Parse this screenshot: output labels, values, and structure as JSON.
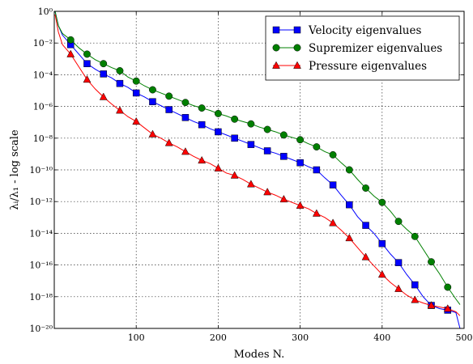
{
  "chart_data": {
    "type": "line",
    "xlabel": "Modes N.",
    "ylabel": "λᵢ/λ₁ - log scale",
    "xlim": [
      0,
      500
    ],
    "ylim_log10": [
      -20,
      0
    ],
    "yscale": "log",
    "grid": true,
    "legend_position": "top-right",
    "x_ticks": [
      100,
      200,
      300,
      400,
      500
    ],
    "x_tick_labels": [
      "100",
      "200",
      "300",
      "400",
      "500"
    ],
    "y_ticks_log10": [
      0,
      -2,
      -4,
      -6,
      -8,
      -10,
      -12,
      -14,
      -16,
      -18,
      -20
    ],
    "y_tick_labels": [
      "10⁰",
      "10⁻²",
      "10⁻⁴",
      "10⁻⁶",
      "10⁻⁸",
      "10⁻¹⁰",
      "10⁻¹²",
      "10⁻¹⁴",
      "10⁻¹⁶",
      "10⁻¹⁸",
      "10⁻²⁰"
    ],
    "series": [
      {
        "name": "Velocity eigenvalues",
        "color": "#0000ff",
        "marker": "square",
        "marker_every": 20,
        "x": [
          1,
          5,
          10,
          20,
          30,
          40,
          50,
          60,
          70,
          80,
          90,
          100,
          110,
          120,
          130,
          140,
          150,
          160,
          170,
          180,
          190,
          200,
          210,
          220,
          230,
          240,
          250,
          260,
          270,
          280,
          290,
          300,
          310,
          320,
          330,
          340,
          350,
          360,
          370,
          380,
          390,
          400,
          410,
          420,
          430,
          440,
          450,
          460,
          470,
          480,
          490,
          495
        ],
        "log10_y": [
          0,
          -0.9,
          -1.5,
          -2.1,
          -2.7,
          -3.3,
          -3.65,
          -3.95,
          -4.2,
          -4.55,
          -4.8,
          -5.15,
          -5.4,
          -5.7,
          -5.95,
          -6.2,
          -6.45,
          -6.7,
          -6.95,
          -7.15,
          -7.4,
          -7.6,
          -7.8,
          -8.0,
          -8.2,
          -8.4,
          -8.6,
          -8.8,
          -8.95,
          -9.15,
          -9.35,
          -9.55,
          -9.8,
          -10.0,
          -10.5,
          -10.95,
          -11.6,
          -12.2,
          -12.95,
          -13.5,
          -14.0,
          -14.65,
          -15.3,
          -15.85,
          -16.6,
          -17.25,
          -18.0,
          -18.55,
          -18.75,
          -18.85,
          -19.0,
          -20.0
        ]
      },
      {
        "name": "Supremizer eigenvalues",
        "color": "#008000",
        "marker": "circle",
        "marker_every": 20,
        "x": [
          1,
          5,
          10,
          20,
          30,
          40,
          50,
          60,
          70,
          80,
          90,
          100,
          110,
          120,
          130,
          140,
          150,
          160,
          170,
          180,
          190,
          200,
          210,
          220,
          230,
          240,
          250,
          260,
          270,
          280,
          290,
          300,
          310,
          320,
          330,
          340,
          350,
          360,
          370,
          380,
          390,
          400,
          410,
          420,
          430,
          440,
          450,
          460,
          470,
          480,
          490,
          495
        ],
        "log10_y": [
          0,
          -0.9,
          -1.4,
          -1.8,
          -2.3,
          -2.7,
          -3.05,
          -3.3,
          -3.55,
          -3.75,
          -4.15,
          -4.4,
          -4.7,
          -4.95,
          -5.15,
          -5.35,
          -5.55,
          -5.75,
          -5.95,
          -6.1,
          -6.25,
          -6.45,
          -6.6,
          -6.8,
          -6.95,
          -7.1,
          -7.3,
          -7.45,
          -7.6,
          -7.8,
          -7.95,
          -8.1,
          -8.35,
          -8.55,
          -8.85,
          -9.05,
          -9.55,
          -10.0,
          -10.6,
          -11.15,
          -11.65,
          -12.05,
          -12.6,
          -13.25,
          -13.75,
          -14.2,
          -15.0,
          -15.8,
          -16.55,
          -17.4,
          -18.15,
          -18.5
        ]
      },
      {
        "name": "Pressure eigenvalues",
        "color": "#ff0000",
        "marker": "triangle",
        "marker_every": 20,
        "x": [
          1,
          5,
          10,
          20,
          30,
          40,
          50,
          60,
          70,
          80,
          90,
          100,
          110,
          120,
          130,
          140,
          150,
          160,
          170,
          180,
          190,
          200,
          210,
          220,
          230,
          240,
          250,
          260,
          270,
          280,
          290,
          300,
          310,
          320,
          330,
          340,
          350,
          360,
          370,
          380,
          390,
          400,
          410,
          420,
          430,
          440,
          450,
          460,
          470,
          480,
          490,
          495
        ],
        "log10_y": [
          -0.2,
          -1.3,
          -2.1,
          -2.7,
          -3.5,
          -4.3,
          -4.9,
          -5.4,
          -5.85,
          -6.25,
          -6.65,
          -6.95,
          -7.35,
          -7.75,
          -8.0,
          -8.3,
          -8.55,
          -8.85,
          -9.15,
          -9.4,
          -9.6,
          -9.9,
          -10.2,
          -10.35,
          -10.6,
          -10.9,
          -11.15,
          -11.4,
          -11.6,
          -11.85,
          -12.05,
          -12.25,
          -12.45,
          -12.75,
          -13.0,
          -13.35,
          -13.8,
          -14.3,
          -14.9,
          -15.5,
          -16.05,
          -16.6,
          -17.1,
          -17.5,
          -17.9,
          -18.2,
          -18.4,
          -18.55,
          -18.65,
          -18.75,
          -18.95,
          -19.2
        ]
      }
    ]
  }
}
